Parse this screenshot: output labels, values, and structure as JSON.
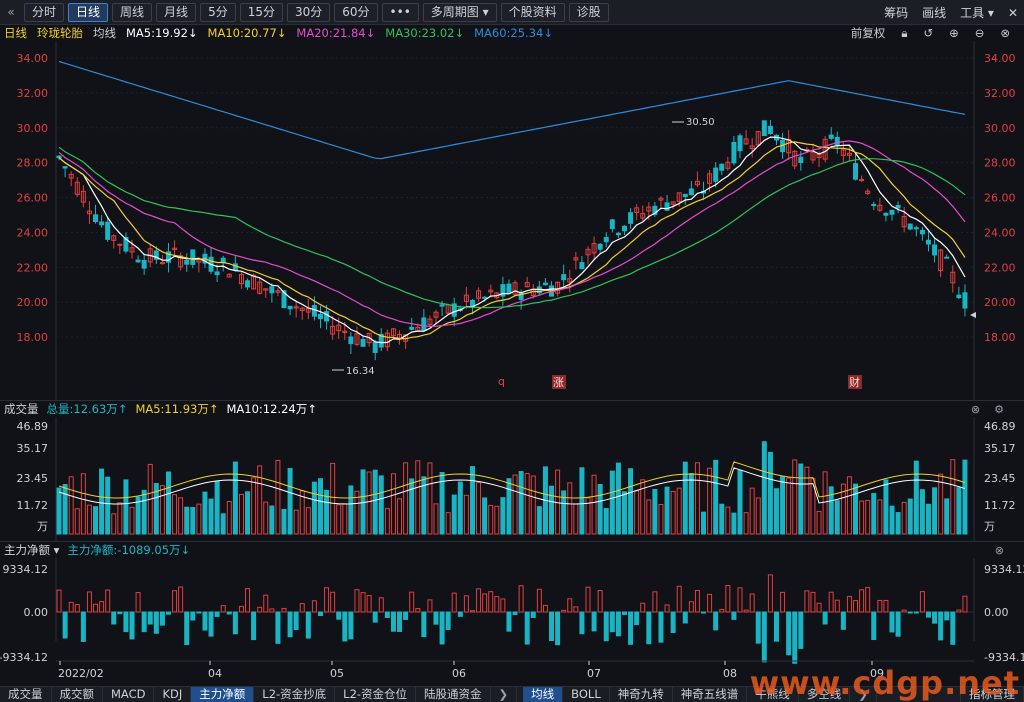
{
  "toolbar": {
    "back_icon": "«",
    "periods": [
      "分时",
      "日线",
      "周线",
      "月线",
      "5分",
      "15分",
      "30分",
      "60分",
      "•••",
      "多周期图 ▾",
      "个股资料",
      "诊股"
    ],
    "active_period": "日线",
    "right_items": [
      "筹码",
      "画线",
      "工具 ▾",
      "✕"
    ]
  },
  "info": {
    "period": "日线",
    "stock_name": "玲珑轮胎",
    "ma_label": "均线",
    "ma5": "MA5:19.92↓",
    "ma10": "MA10:20.77↓",
    "ma20": "MA20:21.84↓",
    "ma30": "MA30:23.02↓",
    "ma60": "MA60:25.34↓",
    "adjust": "前复权",
    "colors": {
      "ma5": "#ffffff",
      "ma10": "#f4d02a",
      "ma20": "#e64bd0",
      "ma30": "#2fc25b",
      "ma60": "#2e8bdc",
      "up": "#e23f3f",
      "down": "#19b5c4"
    }
  },
  "price_axis": {
    "ticks": [
      "34.00",
      "32.00",
      "30.00",
      "28.00",
      "26.00",
      "24.00",
      "22.00",
      "20.00",
      "18.00"
    ],
    "min": 16,
    "max": 34
  },
  "markers": {
    "high": "30.50",
    "low": "16.34",
    "tag_q": "q",
    "tag_zhang": "涨",
    "tag_cai": "财"
  },
  "volume": {
    "title": "成交量",
    "total": "总量:12.63万↑",
    "ma5": "MA5:11.93万↑",
    "ma10": "MA10:12.24万↑",
    "ticks": [
      "46.89",
      "35.17",
      "23.45",
      "11.72",
      "万"
    ]
  },
  "netflow": {
    "title": "主力净额 ▾",
    "value": "主力净额:-1089.05万↓",
    "ticks": [
      "9334.12",
      "0.00",
      "-9334.12"
    ]
  },
  "dates": [
    "2022/02",
    "04",
    "05",
    "06",
    "07",
    "08",
    "09"
  ],
  "bottom_tabs_left": [
    "成交量",
    "成交额",
    "MACD",
    "KDJ",
    "主力净额",
    "L2-资金抄底",
    "L2-资金仓位",
    "陆股通资金"
  ],
  "bottom_tabs_right": [
    "均线",
    "BOLL",
    "神奇九转",
    "神奇五线谱",
    "牛熊线",
    "多空线"
  ],
  "bottom_active_left": "主力净额",
  "bottom_active_right": "均线",
  "bottom_right_label": "指标管理",
  "watermark": "www.cdgp.net"
}
